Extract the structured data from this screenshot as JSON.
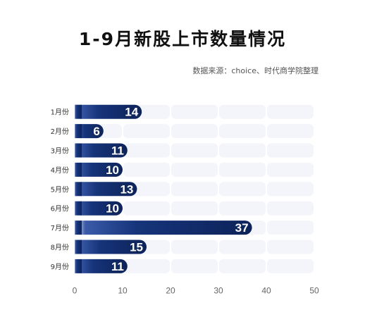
{
  "title": "1-9月新股上市数量情况",
  "source": "数据来源：choice、时代商学院整理",
  "colors": {
    "bar_dark": "#0d2259",
    "bar_mid": "#1e3f8c",
    "bar_light": "#ffffff",
    "track": "#f3f5fa"
  },
  "chart_data": {
    "type": "bar",
    "orientation": "horizontal",
    "title": "1-9月新股上市数量情况",
    "categories": [
      "1月份",
      "2月份",
      "3月份",
      "4月份",
      "5月份",
      "6月份",
      "7月份",
      "8月份",
      "9月份"
    ],
    "values": [
      14,
      6,
      11,
      10,
      13,
      10,
      37,
      15,
      11
    ],
    "xlim": [
      0,
      50
    ],
    "xticks": [
      0,
      10,
      20,
      30,
      40,
      50
    ],
    "grid": false,
    "data_labels": true,
    "source": "数据来源：choice、时代商学院整理"
  }
}
